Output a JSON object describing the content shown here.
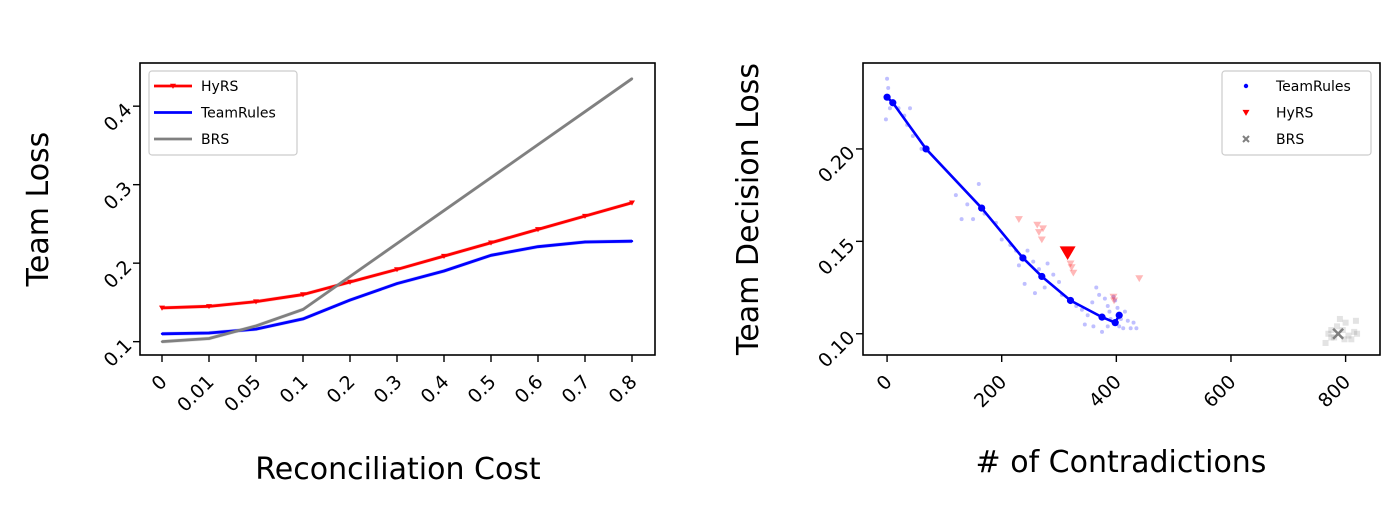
{
  "chart_data": [
    {
      "type": "line",
      "title": "",
      "xlabel": "Reconciliation Cost",
      "ylabel": "Team Loss",
      "categories": [
        "0",
        "0.01",
        "0.05",
        "0.1",
        "0.2",
        "0.3",
        "0.4",
        "0.5",
        "0.6",
        "0.7",
        "0.8"
      ],
      "ylim": [
        0.083,
        0.455
      ],
      "yticks": [
        0.1,
        0.2,
        0.3,
        0.4
      ],
      "ytick_labels": [
        "0.1",
        "0.2",
        "0.3",
        "0.4"
      ],
      "legend_position": "top-left",
      "grid": false,
      "series": [
        {
          "name": "HyRS",
          "color": "#ff0000",
          "marker": "tri_down",
          "values": [
            0.143,
            0.145,
            0.151,
            0.16,
            0.176,
            0.192,
            0.209,
            0.226,
            0.243,
            0.26,
            0.277
          ]
        },
        {
          "name": "TeamRules",
          "color": "#0000ff",
          "marker": "none",
          "values": [
            0.11,
            0.111,
            0.116,
            0.129,
            0.153,
            0.174,
            0.19,
            0.21,
            0.221,
            0.227,
            0.228
          ]
        },
        {
          "name": "BRS",
          "color": "#808080",
          "marker": "none",
          "values": [
            0.1,
            0.104,
            0.12,
            0.141,
            0.183,
            0.225,
            0.267,
            0.309,
            0.351,
            0.393,
            0.435
          ]
        }
      ]
    },
    {
      "type": "scatter",
      "title": "",
      "xlabel": "# of Contradictions",
      "ylabel": "Team Decision Loss",
      "xlim": [
        -42,
        860
      ],
      "ylim": [
        0.0885,
        0.2465
      ],
      "xticks": [
        0,
        200,
        400,
        600,
        800
      ],
      "xtick_labels": [
        "0",
        "200",
        "400",
        "600",
        "800"
      ],
      "yticks": [
        0.1,
        0.15,
        0.2
      ],
      "ytick_labels": [
        "0.10",
        "0.15",
        "0.20"
      ],
      "legend_position": "top-right",
      "grid": false,
      "series": [
        {
          "name": "TeamRules",
          "color": "#0000ff",
          "marker": "point",
          "points": [
            [
              0,
              0.228
            ],
            [
              10,
              0.225
            ],
            [
              68,
              0.2
            ],
            [
              165,
              0.168
            ],
            [
              237,
              0.141
            ],
            [
              270,
              0.131
            ],
            [
              320,
              0.118
            ],
            [
              375,
              0.109
            ],
            [
              398,
              0.106
            ],
            [
              405,
              0.11
            ]
          ]
        },
        {
          "name": "HyRS",
          "color": "#ff0000",
          "marker": "triangle_down",
          "points": [
            [
              315,
              0.144
            ]
          ]
        },
        {
          "name": "BRS",
          "color": "#808080",
          "marker": "x",
          "points": [
            [
              787,
              0.1
            ]
          ]
        }
      ],
      "faint_samples": {
        "TeamRules": [
          [
            0,
            0.238
          ],
          [
            2,
            0.233
          ],
          [
            5,
            0.222
          ],
          [
            -2,
            0.216
          ],
          [
            20,
            0.222
          ],
          [
            30,
            0.218
          ],
          [
            40,
            0.222
          ],
          [
            35,
            0.213
          ],
          [
            45,
            0.207
          ],
          [
            60,
            0.2
          ],
          [
            120,
            0.175
          ],
          [
            160,
            0.181
          ],
          [
            140,
            0.17
          ],
          [
            130,
            0.162
          ],
          [
            150,
            0.162
          ],
          [
            170,
            0.165
          ],
          [
            190,
            0.16
          ],
          [
            200,
            0.151
          ],
          [
            215,
            0.148
          ],
          [
            225,
            0.145
          ],
          [
            230,
            0.137
          ],
          [
            245,
            0.145
          ],
          [
            255,
            0.139
          ],
          [
            265,
            0.135
          ],
          [
            280,
            0.138
          ],
          [
            290,
            0.132
          ],
          [
            300,
            0.128
          ],
          [
            305,
            0.121
          ],
          [
            240,
            0.127
          ],
          [
            258,
            0.122
          ],
          [
            275,
            0.125
          ],
          [
            330,
            0.115
          ],
          [
            340,
            0.113
          ],
          [
            350,
            0.11
          ],
          [
            358,
            0.117
          ],
          [
            365,
            0.125
          ],
          [
            370,
            0.121
          ],
          [
            380,
            0.119
          ],
          [
            385,
            0.115
          ],
          [
            388,
            0.112
          ],
          [
            390,
            0.108
          ],
          [
            395,
            0.12
          ],
          [
            398,
            0.118
          ],
          [
            402,
            0.114
          ],
          [
            405,
            0.104
          ],
          [
            408,
            0.108
          ],
          [
            412,
            0.103
          ],
          [
            415,
            0.112
          ],
          [
            420,
            0.107
          ],
          [
            425,
            0.103
          ],
          [
            430,
            0.106
          ],
          [
            435,
            0.103
          ],
          [
            345,
            0.105
          ],
          [
            360,
            0.104
          ],
          [
            375,
            0.101
          ],
          [
            385,
            0.104
          ]
        ],
        "HyRS": [
          [
            230,
            0.162
          ],
          [
            262,
            0.159
          ],
          [
            265,
            0.155
          ],
          [
            270,
            0.151
          ],
          [
            272,
            0.157
          ],
          [
            320,
            0.138
          ],
          [
            325,
            0.133
          ],
          [
            322,
            0.136
          ],
          [
            395,
            0.12
          ],
          [
            396,
            0.118
          ],
          [
            440,
            0.13
          ]
        ],
        "BRS": [
          [
            765,
            0.095
          ],
          [
            770,
            0.1
          ],
          [
            775,
            0.102
          ],
          [
            780,
            0.098
          ],
          [
            785,
            0.104
          ],
          [
            790,
            0.108
          ],
          [
            795,
            0.102
          ],
          [
            800,
            0.106
          ],
          [
            805,
            0.099
          ],
          [
            810,
            0.097
          ],
          [
            815,
            0.101
          ],
          [
            818,
            0.107
          ],
          [
            798,
            0.097
          ],
          [
            775,
            0.098
          ],
          [
            820,
            0.1
          ]
        ]
      }
    }
  ]
}
